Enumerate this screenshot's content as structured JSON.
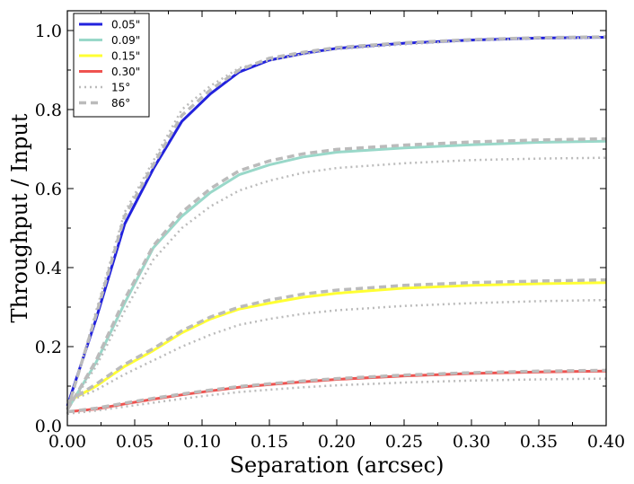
{
  "chart_data": {
    "type": "line",
    "title": "",
    "xlabel": "Separation (arcsec)",
    "ylabel": "Throughput / Input",
    "xlim": [
      0.0,
      0.4
    ],
    "ylim": [
      0.0,
      1.05
    ],
    "x_ticks": [
      0.0,
      0.05,
      0.1,
      0.15,
      0.2,
      0.25,
      0.3,
      0.35,
      0.4
    ],
    "x_tick_labels": [
      "0.00",
      "0.05",
      "0.10",
      "0.15",
      "0.20",
      "0.25",
      "0.30",
      "0.35",
      "0.40"
    ],
    "y_ticks": [
      0.0,
      0.2,
      0.4,
      0.6,
      0.8,
      1.0
    ],
    "y_tick_labels": [
      "0.0",
      "0.2",
      "0.4",
      "0.6",
      "0.8",
      "1.0"
    ],
    "legend_position": "top-left",
    "series": [
      {
        "name": "0.05\"",
        "color": "#2222dd",
        "style": "solid",
        "x": [
          0.0,
          0.0213,
          0.0425,
          0.0638,
          0.085,
          0.1063,
          0.1275,
          0.15,
          0.175,
          0.2,
          0.25,
          0.3,
          0.35,
          0.4
        ],
        "y": [
          0.05,
          0.27,
          0.51,
          0.65,
          0.77,
          0.84,
          0.895,
          0.925,
          0.942,
          0.955,
          0.968,
          0.976,
          0.981,
          0.983
        ]
      },
      {
        "name": "0.09\"",
        "color": "#99d8c9",
        "style": "solid",
        "x": [
          0.0,
          0.0213,
          0.0425,
          0.0638,
          0.085,
          0.1063,
          0.1275,
          0.15,
          0.175,
          0.2,
          0.25,
          0.3,
          0.35,
          0.4
        ],
        "y": [
          0.04,
          0.16,
          0.31,
          0.45,
          0.53,
          0.59,
          0.635,
          0.66,
          0.68,
          0.692,
          0.703,
          0.711,
          0.717,
          0.72
        ]
      },
      {
        "name": "0.15\"",
        "color": "#ffff33",
        "style": "solid",
        "x": [
          0.0,
          0.0213,
          0.0425,
          0.0638,
          0.085,
          0.1063,
          0.1275,
          0.15,
          0.175,
          0.2,
          0.25,
          0.3,
          0.35,
          0.4
        ],
        "y": [
          0.06,
          0.1,
          0.15,
          0.19,
          0.235,
          0.27,
          0.295,
          0.31,
          0.325,
          0.335,
          0.348,
          0.355,
          0.359,
          0.362
        ]
      },
      {
        "name": "0.30\"",
        "color": "#ef5350",
        "style": "solid",
        "x": [
          0.0,
          0.0213,
          0.0425,
          0.0638,
          0.085,
          0.1063,
          0.1275,
          0.15,
          0.175,
          0.2,
          0.25,
          0.3,
          0.35,
          0.4
        ],
        "y": [
          0.035,
          0.042,
          0.055,
          0.067,
          0.078,
          0.088,
          0.097,
          0.104,
          0.111,
          0.117,
          0.126,
          0.132,
          0.136,
          0.138
        ]
      },
      {
        "name": "15°",
        "color": "#bbbbbb",
        "style": "dotted",
        "x": [
          0.0,
          0.0213,
          0.0425,
          0.0638,
          0.085,
          0.1063,
          0.1275,
          0.15,
          0.175,
          0.2,
          0.25,
          0.3,
          0.35,
          0.4
        ],
        "y": [
          0.03,
          0.29,
          0.54,
          0.67,
          0.8,
          0.86,
          0.905,
          0.925,
          0.94,
          0.953,
          0.965,
          0.975,
          0.98,
          0.982
        ]
      },
      {
        "name": "15°",
        "color": "#bbbbbb",
        "style": "dotted",
        "x": [
          0.0,
          0.0213,
          0.0425,
          0.0638,
          0.085,
          0.1063,
          0.1275,
          0.15,
          0.175,
          0.2,
          0.25,
          0.3,
          0.35,
          0.4
        ],
        "y": [
          0.04,
          0.15,
          0.29,
          0.42,
          0.5,
          0.555,
          0.595,
          0.62,
          0.64,
          0.652,
          0.664,
          0.672,
          0.676,
          0.678
        ]
      },
      {
        "name": "15°",
        "color": "#bbbbbb",
        "style": "dotted",
        "x": [
          0.0,
          0.0213,
          0.0425,
          0.0638,
          0.085,
          0.1063,
          0.1275,
          0.15,
          0.175,
          0.2,
          0.25,
          0.3,
          0.35,
          0.4
        ],
        "y": [
          0.06,
          0.09,
          0.13,
          0.165,
          0.2,
          0.23,
          0.255,
          0.27,
          0.283,
          0.292,
          0.303,
          0.31,
          0.315,
          0.318
        ]
      },
      {
        "name": "15°",
        "color": "#bbbbbb",
        "style": "dotted",
        "x": [
          0.0,
          0.0213,
          0.0425,
          0.0638,
          0.085,
          0.1063,
          0.1275,
          0.15,
          0.175,
          0.2,
          0.25,
          0.3,
          0.35,
          0.4
        ],
        "y": [
          0.03,
          0.038,
          0.048,
          0.058,
          0.068,
          0.077,
          0.085,
          0.091,
          0.097,
          0.102,
          0.109,
          0.114,
          0.117,
          0.119
        ]
      },
      {
        "name": "86°",
        "color": "#bbbbbb",
        "style": "dashed",
        "x": [
          0.0,
          0.0213,
          0.0425,
          0.0638,
          0.085,
          0.1063,
          0.1275,
          0.15,
          0.175,
          0.2,
          0.25,
          0.3,
          0.35,
          0.4
        ],
        "y": [
          0.04,
          0.28,
          0.53,
          0.66,
          0.785,
          0.85,
          0.9,
          0.93,
          0.945,
          0.957,
          0.969,
          0.977,
          0.982,
          0.984
        ]
      },
      {
        "name": "86°",
        "color": "#bbbbbb",
        "style": "dashed",
        "x": [
          0.0,
          0.0213,
          0.0425,
          0.0638,
          0.085,
          0.1063,
          0.1275,
          0.15,
          0.175,
          0.2,
          0.25,
          0.3,
          0.35,
          0.4
        ],
        "y": [
          0.04,
          0.165,
          0.32,
          0.455,
          0.54,
          0.6,
          0.645,
          0.67,
          0.688,
          0.699,
          0.71,
          0.718,
          0.723,
          0.726
        ]
      },
      {
        "name": "86°",
        "color": "#bbbbbb",
        "style": "dashed",
        "x": [
          0.0,
          0.0213,
          0.0425,
          0.0638,
          0.085,
          0.1063,
          0.1275,
          0.15,
          0.175,
          0.2,
          0.25,
          0.3,
          0.35,
          0.4
        ],
        "y": [
          0.06,
          0.105,
          0.155,
          0.195,
          0.24,
          0.275,
          0.3,
          0.318,
          0.333,
          0.343,
          0.355,
          0.362,
          0.366,
          0.369
        ]
      },
      {
        "name": "86°",
        "color": "#bbbbbb",
        "style": "dashed",
        "x": [
          0.0,
          0.0213,
          0.0425,
          0.0638,
          0.085,
          0.1063,
          0.1275,
          0.15,
          0.175,
          0.2,
          0.25,
          0.3,
          0.35,
          0.4
        ],
        "y": [
          0.035,
          0.044,
          0.057,
          0.069,
          0.08,
          0.09,
          0.099,
          0.106,
          0.113,
          0.119,
          0.128,
          0.134,
          0.138,
          0.14
        ]
      }
    ],
    "legend": [
      {
        "label": "0.05\"",
        "color": "#2222dd",
        "style": "solid"
      },
      {
        "label": "0.09\"",
        "color": "#99d8c9",
        "style": "solid"
      },
      {
        "label": "0.15\"",
        "color": "#ffff33",
        "style": "solid"
      },
      {
        "label": "0.30\"",
        "color": "#ef5350",
        "style": "solid"
      },
      {
        "label": "15°",
        "color": "#bbbbbb",
        "style": "dotted"
      },
      {
        "label": "86°",
        "color": "#bbbbbb",
        "style": "dashed"
      }
    ]
  }
}
